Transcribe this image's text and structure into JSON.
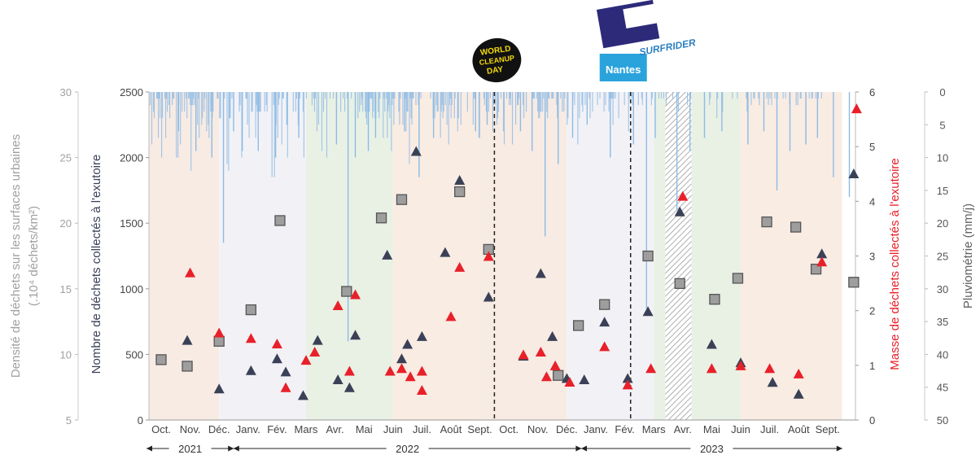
{
  "chart_data": {
    "type": "scatter",
    "title": "",
    "categories": [
      "Oct.",
      "Nov.",
      "Déc.",
      "Janv.",
      "Fév.",
      "Mars",
      "Avr.",
      "Mai",
      "Juin",
      "Juil.",
      "Août",
      "Sept.",
      "Oct.",
      "Nov.",
      "Déc.",
      "Janv.",
      "Fév.",
      "Mars",
      "Avr.",
      "Mai",
      "Juin",
      "Juil.",
      "Août",
      "Sept."
    ],
    "years": [
      {
        "label": "2021",
        "from": 0,
        "to": 2
      },
      {
        "label": "2022",
        "from": 3,
        "to": 14
      },
      {
        "label": "2023",
        "from": 15,
        "to": 23
      }
    ],
    "axes": {
      "y_left_outer": {
        "label": "Densité de déchets sur les surfaces urbaines",
        "label2": "(.10⁴ déchets/km²)",
        "min": 5,
        "max": 30,
        "ticks": [
          5,
          10,
          15,
          20,
          25,
          30
        ],
        "color": "#a0a0a0"
      },
      "y_left_inner": {
        "label": "Nombre de déchets collectés à l'exutoire",
        "min": 0,
        "max": 2500,
        "ticks": [
          0,
          500,
          1000,
          1500,
          2000,
          2500
        ],
        "color": "#3a4157"
      },
      "y_right_inner": {
        "label": "Masse de déchets collectés à l'exutoire",
        "min": 0,
        "max": 6,
        "ticks": [
          0,
          1,
          2,
          3,
          4,
          5,
          6
        ],
        "color": "#e8202a"
      },
      "y_right_outer": {
        "label": "Pluviométrie (mm/j)",
        "min": 0,
        "max": 50,
        "reversed": true,
        "ticks": [
          0,
          5,
          10,
          15,
          20,
          25,
          30,
          35,
          40,
          45,
          50
        ],
        "color": "#606060"
      }
    },
    "series": [
      {
        "name": "Densité de déchets sur les surfaces urbaines",
        "marker": "square",
        "color": "#9e9e9e",
        "axis": "y_left_outer",
        "points": [
          {
            "x": 0.0,
            "y": 9.6
          },
          {
            "x": 0.9,
            "y": 9.1
          },
          {
            "x": 2.0,
            "y": 11.0
          },
          {
            "x": 3.1,
            "y": 13.4
          },
          {
            "x": 4.1,
            "y": 20.2
          },
          {
            "x": 6.4,
            "y": 14.8
          },
          {
            "x": 7.6,
            "y": 20.4
          },
          {
            "x": 8.3,
            "y": 21.8
          },
          {
            "x": 10.3,
            "y": 22.4
          },
          {
            "x": 11.3,
            "y": 18.0
          },
          {
            "x": 13.7,
            "y": 8.4
          },
          {
            "x": 14.4,
            "y": 12.2
          },
          {
            "x": 15.3,
            "y": 13.8
          },
          {
            "x": 16.8,
            "y": 17.5
          },
          {
            "x": 17.9,
            "y": 15.4
          },
          {
            "x": 19.1,
            "y": 14.2
          },
          {
            "x": 19.9,
            "y": 15.8
          },
          {
            "x": 20.9,
            "y": 20.1
          },
          {
            "x": 21.9,
            "y": 19.7
          },
          {
            "x": 22.6,
            "y": 16.5
          },
          {
            "x": 23.9,
            "y": 15.5
          }
        ]
      },
      {
        "name": "Nombre de déchets collectés à l'exutoire",
        "marker": "triangle",
        "color": "#3a4157",
        "axis": "y_left_inner",
        "points": [
          {
            "x": 0.9,
            "y": 610
          },
          {
            "x": 2.0,
            "y": 240
          },
          {
            "x": 3.1,
            "y": 380
          },
          {
            "x": 4.0,
            "y": 470
          },
          {
            "x": 4.3,
            "y": 370
          },
          {
            "x": 4.9,
            "y": 190
          },
          {
            "x": 5.4,
            "y": 610
          },
          {
            "x": 6.1,
            "y": 310
          },
          {
            "x": 6.5,
            "y": 250
          },
          {
            "x": 6.7,
            "y": 650
          },
          {
            "x": 7.8,
            "y": 1260
          },
          {
            "x": 8.3,
            "y": 470
          },
          {
            "x": 8.5,
            "y": 580
          },
          {
            "x": 8.8,
            "y": 2050
          },
          {
            "x": 9.0,
            "y": 640
          },
          {
            "x": 9.8,
            "y": 1280
          },
          {
            "x": 10.3,
            "y": 1830
          },
          {
            "x": 11.3,
            "y": 940
          },
          {
            "x": 12.5,
            "y": 490
          },
          {
            "x": 13.1,
            "y": 1120
          },
          {
            "x": 13.5,
            "y": 640
          },
          {
            "x": 14.0,
            "y": 320
          },
          {
            "x": 14.6,
            "y": 310
          },
          {
            "x": 15.3,
            "y": 750
          },
          {
            "x": 16.1,
            "y": 320
          },
          {
            "x": 16.8,
            "y": 830
          },
          {
            "x": 17.9,
            "y": 1590
          },
          {
            "x": 19.0,
            "y": 580
          },
          {
            "x": 20.0,
            "y": 440
          },
          {
            "x": 21.1,
            "y": 290
          },
          {
            "x": 22.0,
            "y": 200
          },
          {
            "x": 22.8,
            "y": 1270
          },
          {
            "x": 23.9,
            "y": 1880
          }
        ]
      },
      {
        "name": "Masse de déchets collectés à l'exutoire",
        "marker": "triangle",
        "color": "#e8202a",
        "axis": "y_right_inner",
        "points": [
          {
            "x": 1.0,
            "y": 2.7
          },
          {
            "x": 2.0,
            "y": 1.6
          },
          {
            "x": 3.1,
            "y": 1.5
          },
          {
            "x": 4.0,
            "y": 1.4
          },
          {
            "x": 4.3,
            "y": 0.6
          },
          {
            "x": 5.0,
            "y": 1.1
          },
          {
            "x": 5.3,
            "y": 1.25
          },
          {
            "x": 6.1,
            "y": 2.1
          },
          {
            "x": 6.5,
            "y": 0.9
          },
          {
            "x": 6.7,
            "y": 2.3
          },
          {
            "x": 7.9,
            "y": 0.9
          },
          {
            "x": 8.3,
            "y": 0.95
          },
          {
            "x": 8.6,
            "y": 0.8
          },
          {
            "x": 9.0,
            "y": 0.9
          },
          {
            "x": 9.0,
            "y": 0.55
          },
          {
            "x": 10.0,
            "y": 1.9
          },
          {
            "x": 10.3,
            "y": 2.8
          },
          {
            "x": 11.3,
            "y": 3.0
          },
          {
            "x": 12.5,
            "y": 1.2
          },
          {
            "x": 13.1,
            "y": 1.25
          },
          {
            "x": 13.3,
            "y": 0.8
          },
          {
            "x": 13.6,
            "y": 1.0
          },
          {
            "x": 14.1,
            "y": 0.7
          },
          {
            "x": 15.3,
            "y": 1.35
          },
          {
            "x": 16.1,
            "y": 0.65
          },
          {
            "x": 16.9,
            "y": 0.95
          },
          {
            "x": 18.0,
            "y": 4.1
          },
          {
            "x": 19.0,
            "y": 0.95
          },
          {
            "x": 20.0,
            "y": 1.0
          },
          {
            "x": 21.0,
            "y": 0.95
          },
          {
            "x": 22.0,
            "y": 0.85
          },
          {
            "x": 22.8,
            "y": 2.9
          },
          {
            "x": 24.0,
            "y": 5.7
          }
        ]
      }
    ],
    "rain_daily": [
      0,
      2,
      0,
      8,
      0,
      3,
      4,
      0,
      0,
      1,
      1,
      7,
      1,
      4,
      0,
      10,
      4,
      0,
      0,
      1,
      7,
      1,
      3,
      0,
      2,
      4,
      0,
      0,
      2,
      1,
      1,
      0,
      0,
      10,
      0,
      10,
      2,
      0,
      8,
      0,
      3,
      0,
      0,
      3,
      0,
      1,
      4,
      0,
      1,
      1,
      2,
      12,
      2,
      2,
      1,
      2,
      0,
      4,
      0,
      5,
      1,
      7,
      0,
      0,
      5,
      4,
      0,
      3,
      1,
      0,
      6,
      0,
      5,
      7,
      0,
      3,
      2,
      4,
      3,
      0,
      0,
      0,
      0,
      1,
      1,
      0,
      4,
      4,
      0,
      0,
      0,
      0,
      1,
      0,
      0,
      11,
      0,
      12,
      4,
      4,
      0,
      1,
      0,
      3,
      0,
      0,
      0,
      0,
      0,
      0,
      3,
      2,
      0,
      10,
      0,
      0,
      0,
      0,
      1,
      1,
      5,
      0,
      7,
      0,
      0,
      3,
      3,
      0,
      0,
      0,
      7,
      2,
      3,
      0,
      3,
      3,
      3,
      0,
      0,
      0,
      0,
      3,
      0,
      2,
      3,
      0,
      0,
      0,
      0,
      0,
      13,
      0,
      2,
      13,
      2,
      5,
      0,
      7,
      2,
      1,
      0,
      0,
      8,
      1,
      1,
      0,
      0,
      0,
      5,
      10,
      0,
      0,
      0,
      0,
      0,
      0,
      3,
      0,
      0,
      3,
      1,
      0,
      5,
      0,
      1,
      0,
      0,
      0,
      3,
      10,
      0,
      0,
      1,
      0,
      0,
      0,
      0,
      0,
      0,
      2,
      0,
      1,
      3,
      1,
      0,
      6,
      0,
      5,
      0,
      0,
      0,
      9,
      0,
      3,
      0,
      1,
      0,
      10,
      0,
      0,
      0,
      1,
      0,
      0,
      0,
      1,
      0,
      0,
      0,
      1,
      0,
      0,
      0,
      0,
      3,
      0,
      0,
      1,
      0,
      3,
      0,
      0,
      1,
      0,
      0,
      0,
      0,
      1,
      0,
      0,
      0,
      0,
      0,
      0,
      0,
      4,
      0,
      3,
      0,
      2,
      1,
      3,
      0,
      0,
      3,
      4,
      5,
      3,
      3,
      3,
      1,
      1,
      1,
      4,
      3,
      0,
      4,
      4,
      0,
      0,
      3,
      4,
      1,
      0,
      0,
      0,
      7,
      1,
      3,
      0,
      1,
      7,
      3,
      2,
      4,
      0,
      9,
      2,
      1,
      5,
      1,
      0,
      0,
      0,
      0,
      3,
      5,
      1,
      0,
      0,
      5,
      0,
      1,
      1,
      6,
      3,
      3,
      0,
      11,
      1,
      4,
      5,
      1,
      1,
      0,
      0,
      2,
      0,
      0,
      2,
      1,
      0,
      1,
      0,
      0,
      0,
      0,
      0,
      0,
      0,
      0,
      0,
      0,
      0,
      1,
      0,
      0,
      4,
      0,
      4,
      0,
      2,
      3,
      3,
      0,
      0,
      7,
      3,
      2,
      4,
      3,
      0,
      2,
      0,
      5,
      0,
      8,
      2,
      1,
      4,
      2,
      0,
      0,
      4,
      1,
      0,
      0,
      6,
      0,
      0,
      0,
      5,
      0,
      0,
      0,
      0,
      0,
      0,
      0,
      3,
      0,
      0,
      0,
      0,
      0,
      0,
      5,
      1,
      1,
      2,
      0,
      0,
      0,
      7,
      7,
      0,
      0,
      0,
      0,
      1,
      2,
      0,
      3,
      2,
      0,
      3,
      0,
      1,
      0,
      0,
      6,
      2,
      0,
      2,
      0,
      5,
      4,
      3,
      0,
      0,
      1,
      0,
      0,
      6,
      8,
      0,
      0,
      1,
      0,
      0,
      2,
      1,
      2,
      0,
      8,
      0,
      0,
      0,
      5,
      0,
      2,
      2,
      1,
      0,
      0,
      0,
      0,
      2,
      4,
      0,
      0,
      3,
      0,
      0,
      0,
      0,
      0,
      0,
      0,
      1,
      1,
      1,
      0,
      0,
      1,
      3,
      4,
      4,
      3,
      3,
      0,
      3,
      1,
      0,
      2,
      0,
      3,
      4,
      1,
      1,
      0,
      0,
      1,
      1,
      1,
      0,
      0,
      0,
      2,
      4,
      0,
      0,
      0,
      1,
      0,
      3,
      0,
      3,
      1,
      0,
      0,
      5,
      4,
      0,
      0,
      0,
      0,
      0,
      1,
      0,
      2,
      0,
      0,
      0,
      8,
      0,
      4,
      0,
      0,
      2,
      3,
      0,
      0,
      2,
      0,
      0,
      0,
      0,
      1,
      4,
      0,
      0,
      3,
      0,
      0,
      0,
      0,
      0,
      2,
      0,
      0,
      1,
      0,
      0,
      0,
      0,
      3,
      0,
      2,
      0,
      0,
      0,
      3,
      1,
      1,
      1,
      1,
      5,
      1,
      0,
      1,
      0,
      0,
      0,
      4,
      0,
      0,
      0,
      0,
      0,
      0,
      2,
      0,
      0,
      0,
      0,
      6,
      1,
      0,
      0,
      1,
      2,
      0,
      0,
      0,
      0,
      0,
      0,
      2,
      0,
      0,
      0,
      1,
      2,
      0,
      0,
      0,
      0,
      3,
      0,
      0,
      0,
      0,
      0,
      2,
      1,
      0,
      0,
      0,
      0,
      0,
      0,
      0,
      1,
      0,
      0,
      1,
      0,
      0,
      1,
      0,
      0,
      2,
      0,
      0,
      0,
      0,
      0,
      0,
      0,
      1,
      0,
      0,
      0,
      0,
      1,
      0,
      3,
      0,
      0,
      0,
      0,
      0,
      0,
      0,
      0,
      0,
      0,
      2,
      0,
      0,
      0,
      1,
      0,
      0,
      0,
      0,
      0,
      0,
      0,
      0,
      0,
      0,
      0,
      0,
      0,
      0,
      0,
      0,
      0,
      0,
      0,
      0,
      0,
      0,
      2,
      1,
      0,
      0,
      0,
      0,
      0,
      0,
      0,
      4,
      1,
      0,
      0,
      0,
      0,
      0,
      3,
      0,
      0,
      0,
      0,
      0,
      0,
      0,
      0,
      0,
      0,
      0,
      1,
      0,
      0,
      0,
      0,
      0,
      1,
      0,
      0,
      0,
      0,
      0,
      0,
      0,
      0,
      0,
      0,
      1,
      3,
      0,
      0,
      0,
      0,
      2,
      0,
      0,
      1,
      1,
      0,
      0,
      0,
      0,
      1,
      2,
      0,
      0,
      0,
      0,
      0,
      0,
      0,
      0,
      1,
      0,
      2,
      0,
      1,
      0,
      2,
      0,
      0,
      0,
      1,
      0,
      0,
      1,
      0,
      0,
      0,
      0,
      0,
      0,
      1,
      0,
      0,
      1,
      0,
      0,
      0,
      0,
      2,
      0,
      0,
      0,
      0,
      0,
      0,
      0,
      2,
      0,
      2,
      0,
      0,
      1,
      1,
      0,
      0,
      0,
      0,
      0,
      0,
      0,
      0,
      0,
      1,
      0,
      0,
      1,
      1,
      0,
      0,
      0,
      1,
      0,
      0,
      1,
      0,
      0,
      0,
      1,
      0,
      0,
      0,
      0,
      0,
      0,
      0,
      0,
      0,
      0,
      0,
      0,
      0,
      0,
      0,
      0,
      0,
      0,
      0,
      0,
      0,
      0,
      0,
      0,
      0,
      0,
      0,
      0,
      0,
      0,
      0,
      0,
      0,
      0,
      0,
      0,
      0,
      0,
      0,
      0,
      0
    ],
    "rain_events": [
      {
        "x": 0.6,
        "mm": 6
      },
      {
        "x": 1.2,
        "mm": 9
      },
      {
        "x": 1.75,
        "mm": 10
      },
      {
        "x": 2.15,
        "mm": 23
      },
      {
        "x": 2.5,
        "mm": 6
      },
      {
        "x": 2.8,
        "mm": 9
      },
      {
        "x": 3.35,
        "mm": 9
      },
      {
        "x": 3.95,
        "mm": 10
      },
      {
        "x": 4.35,
        "mm": 5
      },
      {
        "x": 4.75,
        "mm": 7
      },
      {
        "x": 6.05,
        "mm": 8
      },
      {
        "x": 6.45,
        "mm": 38
      },
      {
        "x": 6.7,
        "mm": 10
      },
      {
        "x": 7.15,
        "mm": 9
      },
      {
        "x": 7.4,
        "mm": 7
      },
      {
        "x": 8.4,
        "mm": 6
      },
      {
        "x": 8.9,
        "mm": 13
      },
      {
        "x": 9.4,
        "mm": 7
      },
      {
        "x": 10.25,
        "mm": 4
      },
      {
        "x": 10.85,
        "mm": 6
      },
      {
        "x": 11.25,
        "mm": 5
      },
      {
        "x": 12.4,
        "mm": 6
      },
      {
        "x": 12.8,
        "mm": 9
      },
      {
        "x": 13.25,
        "mm": 22
      },
      {
        "x": 13.7,
        "mm": 11
      },
      {
        "x": 14.2,
        "mm": 7
      },
      {
        "x": 14.7,
        "mm": 5
      },
      {
        "x": 15.5,
        "mm": 10
      },
      {
        "x": 16.3,
        "mm": 8
      },
      {
        "x": 16.75,
        "mm": 33
      },
      {
        "x": 17.05,
        "mm": 7
      },
      {
        "x": 17.8,
        "mm": 18
      },
      {
        "x": 18.25,
        "mm": 9
      },
      {
        "x": 18.75,
        "mm": 7
      },
      {
        "x": 19.35,
        "mm": 6
      },
      {
        "x": 20.25,
        "mm": 8
      },
      {
        "x": 20.8,
        "mm": 6
      },
      {
        "x": 21.25,
        "mm": 15
      },
      {
        "x": 21.7,
        "mm": 9
      },
      {
        "x": 22.25,
        "mm": 8
      },
      {
        "x": 22.65,
        "mm": 7
      },
      {
        "x": 23.2,
        "mm": 13
      },
      {
        "x": 23.75,
        "mm": 16
      }
    ],
    "season_bands": [
      {
        "from": -0.5,
        "to": 2.0,
        "color": "#f7ebe3"
      },
      {
        "from": 2.0,
        "to": 5.0,
        "color": "#f2f2f6"
      },
      {
        "from": 5.0,
        "to": 8.0,
        "color": "#e9f1e5"
      },
      {
        "from": 8.0,
        "to": 11.0,
        "color": "#f9ece3"
      },
      {
        "from": 11.0,
        "to": 14.0,
        "color": "#f7ebe3"
      },
      {
        "from": 14.0,
        "to": 17.0,
        "color": "#f2f2f6"
      },
      {
        "from": 17.0,
        "to": 20.0,
        "color": "#e9f1e5"
      },
      {
        "from": 20.0,
        "to": 23.5,
        "color": "#f9ece3"
      }
    ],
    "hatched_range": {
      "from": 17.4,
      "to": 18.3
    },
    "event_lines": [
      11.5,
      16.2
    ],
    "logos": [
      {
        "name": "world-cleanup-day",
        "lines": [
          "WORLD",
          "CLEANUP",
          "DAY"
        ],
        "x": 11.5
      },
      {
        "name": "nantes-universite-surfrider",
        "lines": [
          "Nantes",
          "SURFRIDER"
        ],
        "x": 16.2
      }
    ],
    "grid": false,
    "legend": "none"
  }
}
